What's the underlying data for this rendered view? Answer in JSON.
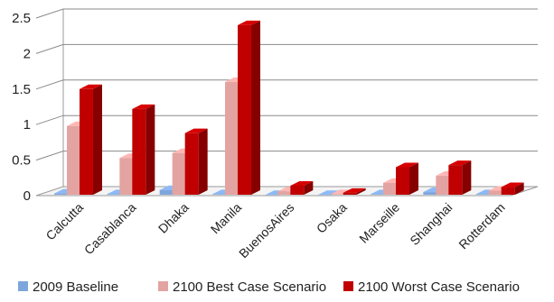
{
  "chart_data": {
    "type": "bar",
    "title": "",
    "xlabel": "",
    "ylabel": "",
    "ylim": [
      0,
      2.5
    ],
    "yticks": [
      "0",
      "0.5",
      "1",
      "1.5",
      "2",
      "2.5"
    ],
    "grid": true,
    "legend_position": "bottom",
    "categories": [
      "Calcutta",
      "Casablanca",
      "Dhaka",
      "Manila",
      "BuenosAires",
      "Osaka",
      "Marseille",
      "Shanghai",
      "Rotterdam"
    ],
    "series": [
      {
        "name": "2009 Baseline",
        "color": "#7EA6DC",
        "values": [
          0.03,
          0.02,
          0.08,
          0.02,
          0.01,
          0.01,
          0.02,
          0.05,
          0.02
        ]
      },
      {
        "name": "2100 Best Case Scenario",
        "color": "#E3A3A1",
        "values": [
          0.98,
          0.53,
          0.6,
          1.6,
          0.06,
          0.02,
          0.18,
          0.28,
          0.07
        ]
      },
      {
        "name": "2100 Worst Case Scenario",
        "color": "#C00000",
        "values": [
          1.5,
          1.22,
          0.88,
          2.4,
          0.14,
          0.04,
          0.4,
          0.43,
          0.12
        ]
      }
    ]
  }
}
